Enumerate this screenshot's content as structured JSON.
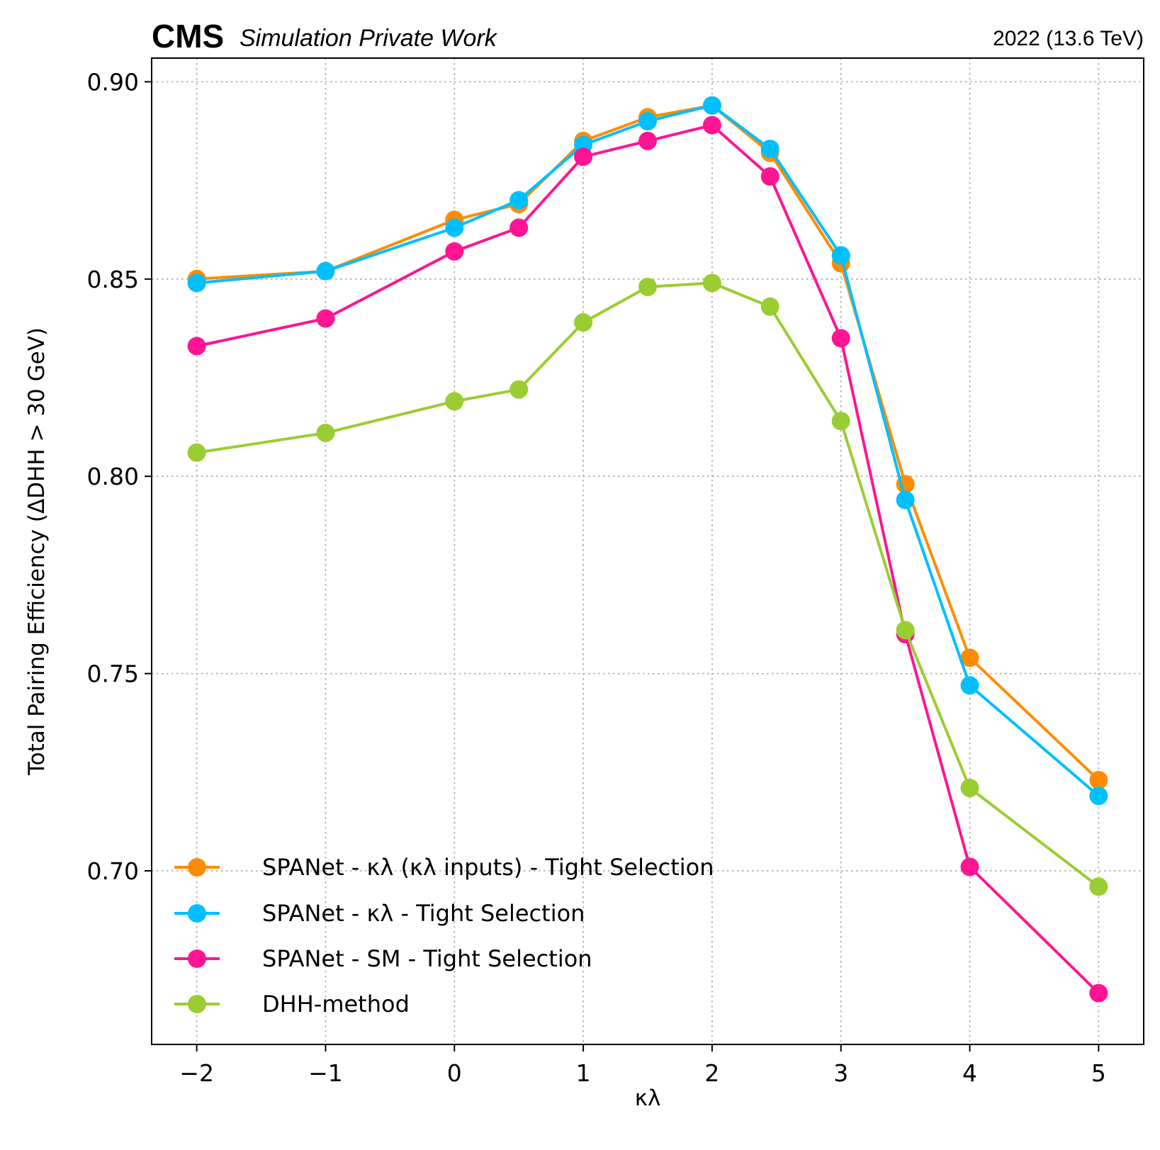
{
  "header": {
    "experiment": "CMS",
    "status": "Simulation Private Work",
    "lumi": "2022 (13.6 TeV)"
  },
  "chart_data": {
    "type": "line",
    "title": "",
    "xlabel": "κλ",
    "ylabel": "Total Pairing Efficiency (ΔDHH > 30 GeV)",
    "xlim": [
      -2.35,
      5.35
    ],
    "ylim": [
      0.656,
      0.906
    ],
    "xticks": [
      -2,
      -1,
      0,
      1,
      2,
      3,
      4,
      5
    ],
    "xtick_labels": [
      "−2",
      "−1",
      "0",
      "1",
      "2",
      "3",
      "4",
      "5"
    ],
    "yticks": [
      0.7,
      0.75,
      0.8,
      0.85,
      0.9
    ],
    "ytick_labels": [
      "0.70",
      "0.75",
      "0.80",
      "0.85",
      "0.90"
    ],
    "grid": true,
    "legend_position": "lower-left",
    "x": [
      -2,
      -1,
      0,
      0.5,
      1,
      1.5,
      2,
      2.45,
      3,
      3.5,
      4,
      5
    ],
    "series": [
      {
        "name": "SPANet - κλ (κλ inputs) - Tight Selection",
        "color": "#ff8c00",
        "values": [
          0.85,
          0.852,
          0.865,
          0.869,
          0.885,
          0.891,
          0.894,
          0.882,
          0.854,
          0.798,
          0.754,
          0.723
        ]
      },
      {
        "name": "SPANet - κλ - Tight Selection",
        "color": "#00bfff",
        "values": [
          0.849,
          0.852,
          0.863,
          0.87,
          0.884,
          0.89,
          0.894,
          0.883,
          0.856,
          0.794,
          0.747,
          0.719
        ]
      },
      {
        "name": "SPANet - SM - Tight Selection",
        "color": "#ff1493",
        "values": [
          0.833,
          0.84,
          0.857,
          0.863,
          0.881,
          0.885,
          0.889,
          0.876,
          0.835,
          0.76,
          0.701,
          0.669
        ]
      },
      {
        "name": "DHH-method",
        "color": "#9acd32",
        "values": [
          0.806,
          0.811,
          0.819,
          0.822,
          0.839,
          0.848,
          0.849,
          0.843,
          0.814,
          0.761,
          0.721,
          0.696
        ]
      }
    ]
  }
}
